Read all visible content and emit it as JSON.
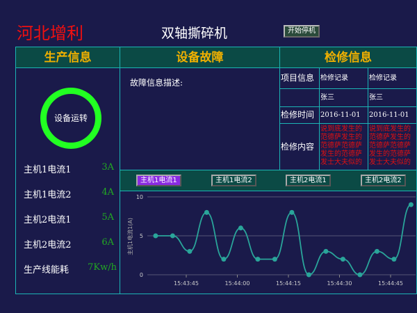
{
  "header": {
    "brand": "河北增利",
    "title": "双轴撕碎机",
    "start_button": "开始停机"
  },
  "production": {
    "title": "生产信息",
    "status": "设备运转",
    "status_color": "#22ff22",
    "rows": [
      {
        "label": "主机1电流1",
        "value": "3A"
      },
      {
        "label": "主机1电流2",
        "value": "4A"
      },
      {
        "label": "主机2电流1",
        "value": "5A"
      },
      {
        "label": "主机2电流2",
        "value": "6A"
      },
      {
        "label": "生产线能耗",
        "value": "7Kw/h"
      }
    ]
  },
  "fault": {
    "title": "设备故障",
    "desc_label": "故障信息描述:"
  },
  "maintenance": {
    "title": "检修信息",
    "row_labels": [
      "项目信息",
      "",
      "检修时间",
      "检修内容"
    ],
    "records": [
      {
        "header": "检修记录",
        "person": "张三",
        "time": "2016-11-01",
        "content": "说到底发生的范德萨发生的范德萨范德萨发生的范德萨发士大夫似的"
      },
      {
        "header": "检修记录",
        "person": "张三",
        "time": "2016-11-01",
        "content": "说到底发生的范德萨发生的范德萨范德萨发生的范德萨发士大夫似的"
      }
    ]
  },
  "chart_tabs": [
    {
      "label": "主机1电流1",
      "active": true
    },
    {
      "label": "主机1电流2",
      "active": false
    },
    {
      "label": "主机2电流1",
      "active": false
    },
    {
      "label": "主机2电流2",
      "active": false
    }
  ],
  "chart_data": {
    "type": "line",
    "ylabel": "主机1电流1(A)",
    "ylim": [
      0,
      10
    ],
    "yticks": [
      "0",
      "5",
      "10"
    ],
    "xticks": [
      "15:43:45",
      "15:44:00",
      "15:44:15",
      "15:44:30",
      "15:44:45"
    ],
    "x": [
      "15:43:36",
      "15:43:41",
      "15:43:46",
      "15:43:51",
      "15:43:56",
      "15:44:01",
      "15:44:06",
      "15:44:11",
      "15:44:16",
      "15:44:21",
      "15:44:26",
      "15:44:31",
      "15:44:36",
      "15:44:41",
      "15:44:46",
      "15:44:51"
    ],
    "values": [
      5,
      5,
      3,
      8,
      2,
      6,
      2,
      2,
      8,
      0,
      3,
      2,
      0,
      3,
      2,
      9
    ],
    "color": "#2aa59a",
    "grid": true
  }
}
